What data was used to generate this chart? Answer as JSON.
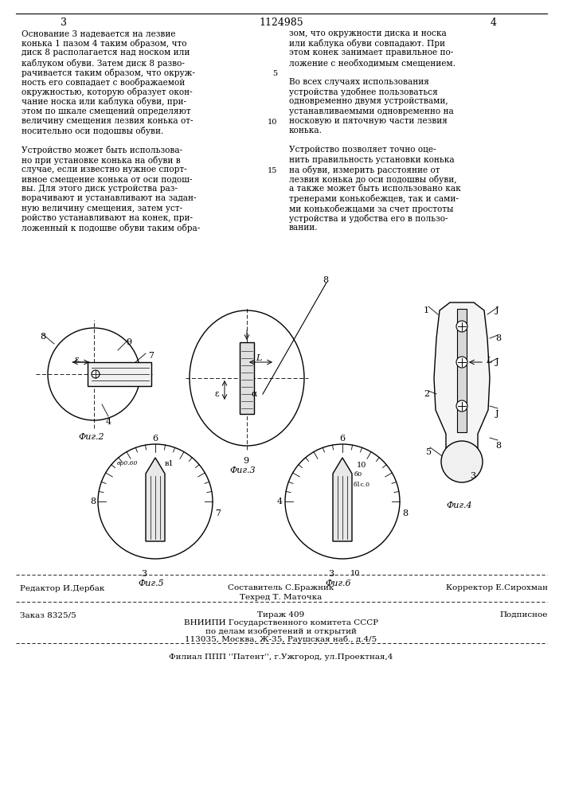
{
  "page_number_left": "3",
  "page_number_right": "4",
  "patent_number": "1124985",
  "background_color": "#ffffff",
  "text_color": "#000000",
  "left_column_text": [
    "Основание 3 надевается на лезвие",
    "конька 1 пазом 4 таким образом, что",
    "диск 8 располагается над носком или",
    "каблуком обуви. Затем диск 8 разво-",
    "рачивается таким образом, что окруж-",
    "ность его совпадает с воображаемой",
    "окружностью, которую образует окон-",
    "чание носка или каблука обуви, при-",
    "этом по шкале смещений определяют",
    "величину смещения лезвия конька от-",
    "носительно оси подошвы обуви.",
    "",
    "Устройство может быть использова-",
    "но при установке конька на обуви в",
    "случае, если известно нужное спорт-",
    "ивное смещение конька от оси подош-",
    "вы. Для этого диск устройства раз-",
    "ворачивают и устанавливают на задан-",
    "ную величину смещения, затем уст-",
    "ройство устанавливают на конек, при-",
    "ложенный к подошве обуви таким обра-"
  ],
  "right_column_text": [
    "зом, что окружности диска и носка",
    "или каблука обуви совпадают. При",
    "этом конек занимает правильное по-",
    "ложение с необходимым смещением.",
    "",
    "Во всех случаях использования",
    "устройства удобнее пользоваться",
    "одновременно двумя устройствами,",
    "устанавливаемыми одновременно на",
    "носковую и пяточную части лезвия",
    "конька.",
    "",
    "Устройство позволяет точно оце-",
    "нить правильность установки конька",
    "на обуви, измерить расстояние от",
    "лезвия конька до оси подошвы обуви,",
    "а также может быть использовано как",
    "тренерами конькобежцев, так и сами-",
    "ми конькобежцами за счет простоты",
    "устройства и удобства его в пользо-",
    "вании."
  ],
  "fig2_label": "Фиг.2",
  "fig3_label": "Фиг.3",
  "fig4_label": "Фиг.4",
  "fig5_label": "Фиг.5",
  "fig6_label": "Фиг.6",
  "footer_editor": "Редактор И.Дербак",
  "footer_composer": "Составитель С.Бражник",
  "footer_corrector": "Корректор Е.Сирохман",
  "footer_tehred": "Техред Т. Маточка",
  "footer_zakaz": "Заказ 8325/5",
  "footer_tirazh": "Тираж 409",
  "footer_podp": "Подписное",
  "footer_vniipki": "ВНИИПИ Государственного комитета СССР",
  "footer_po_delam": "по делам изобретений и открытий",
  "footer_address": "113035, Москва, Ж-35, Раушская наб., д.4/5",
  "footer_filial": "Филиал ППП ''Патент'', г.Ужгород, ул.Проектная,4"
}
